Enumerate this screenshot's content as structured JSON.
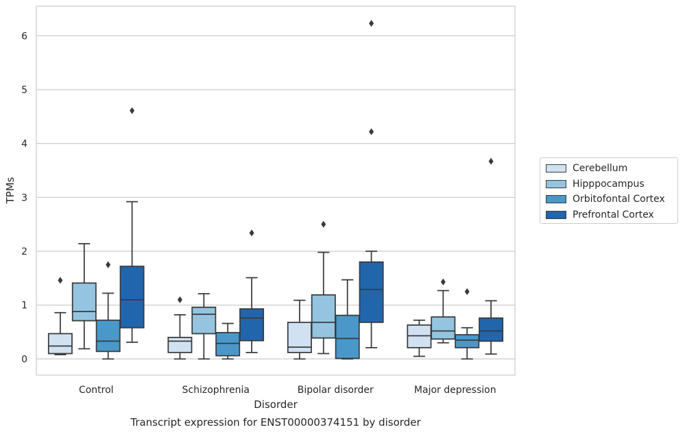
{
  "chart_data": {
    "type": "boxplot",
    "title": "Transcript expression for ENST00000374151 by disorder",
    "xlabel": "Disorder",
    "ylabel": "TPMs",
    "ylim": [
      -0.3,
      6.55
    ],
    "yticks": [
      0,
      1,
      2,
      3,
      4,
      5,
      6
    ],
    "grid": "horizontal",
    "legend_position": "right",
    "categories": [
      "Control",
      "Schizophrenia",
      "Bipolar disorder",
      "Major depression"
    ],
    "series": [
      {
        "name": "Cerebellum",
        "color": "#d0e1f2",
        "boxes": [
          {
            "whislo": 0.08,
            "q1": 0.1,
            "med": 0.24,
            "q3": 0.47,
            "whishi": 0.86,
            "fliers": [
              1.46
            ]
          },
          {
            "whislo": 0.0,
            "q1": 0.12,
            "med": 0.33,
            "q3": 0.4,
            "whishi": 0.82,
            "fliers": [
              1.1
            ]
          },
          {
            "whislo": 0.0,
            "q1": 0.12,
            "med": 0.22,
            "q3": 0.68,
            "whishi": 1.09,
            "fliers": []
          },
          {
            "whislo": 0.05,
            "q1": 0.21,
            "med": 0.43,
            "q3": 0.63,
            "whishi": 0.72,
            "fliers": []
          }
        ]
      },
      {
        "name": "Hipppocampus",
        "color": "#94c4df",
        "boxes": [
          {
            "whislo": 0.19,
            "q1": 0.71,
            "med": 0.88,
            "q3": 1.41,
            "whishi": 2.14,
            "fliers": []
          },
          {
            "whislo": 0.0,
            "q1": 0.47,
            "med": 0.83,
            "q3": 0.96,
            "whishi": 1.21,
            "fliers": []
          },
          {
            "whislo": 0.1,
            "q1": 0.39,
            "med": 0.68,
            "q3": 1.19,
            "whishi": 1.98,
            "fliers": [
              2.5
            ]
          },
          {
            "whislo": 0.3,
            "q1": 0.37,
            "med": 0.52,
            "q3": 0.78,
            "whishi": 1.27,
            "fliers": [
              1.43
            ]
          }
        ]
      },
      {
        "name": "Orbitofontal Cortex",
        "color": "#4a98c9",
        "boxes": [
          {
            "whislo": 0.0,
            "q1": 0.14,
            "med": 0.33,
            "q3": 0.72,
            "whishi": 1.22,
            "fliers": [
              1.75
            ]
          },
          {
            "whislo": 0.0,
            "q1": 0.06,
            "med": 0.29,
            "q3": 0.49,
            "whishi": 0.66,
            "fliers": []
          },
          {
            "whislo": 0.0,
            "q1": 0.01,
            "med": 0.38,
            "q3": 0.81,
            "whishi": 1.47,
            "fliers": []
          },
          {
            "whislo": 0.0,
            "q1": 0.21,
            "med": 0.35,
            "q3": 0.45,
            "whishi": 0.58,
            "fliers": [
              1.25
            ]
          }
        ]
      },
      {
        "name": "Prefrontal Cortex",
        "color": "#2166ac",
        "boxes": [
          {
            "whislo": 0.31,
            "q1": 0.58,
            "med": 1.1,
            "q3": 1.72,
            "whishi": 2.92,
            "fliers": [
              4.61
            ]
          },
          {
            "whislo": 0.12,
            "q1": 0.34,
            "med": 0.76,
            "q3": 0.93,
            "whishi": 1.51,
            "fliers": [
              2.34
            ]
          },
          {
            "whislo": 0.21,
            "q1": 0.68,
            "med": 1.29,
            "q3": 1.8,
            "whishi": 2.0,
            "fliers": [
              4.22,
              6.23
            ]
          },
          {
            "whislo": 0.09,
            "q1": 0.33,
            "med": 0.52,
            "q3": 0.76,
            "whishi": 1.08,
            "fliers": [
              3.67
            ]
          }
        ]
      }
    ]
  }
}
